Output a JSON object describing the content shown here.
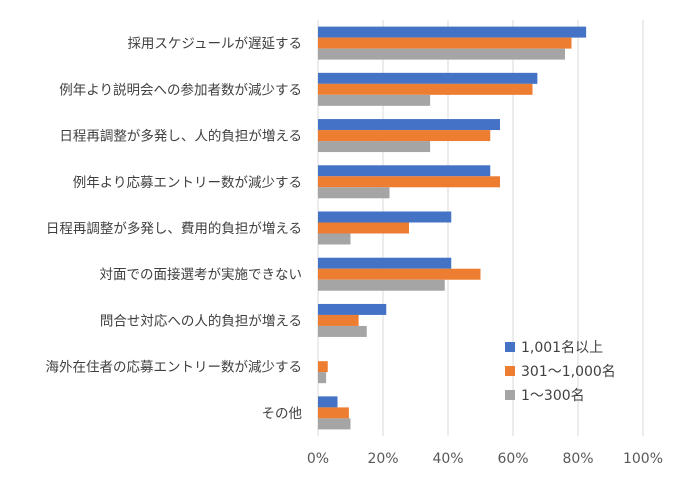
{
  "chart_data": {
    "type": "bar",
    "orientation": "horizontal",
    "categories": [
      "採用スケジュールが遅延する",
      "例年より説明会への参加者数が減少する",
      "日程再調整が多発し、人的負担が増える",
      "例年より応募エントリー数が減少する",
      "日程再調整が多発し、費用的負担が増える",
      "対面での面接選考が実施できない",
      "問合せ対応への人的負担が増える",
      "海外在住者の応募エントリー数が減少する",
      "その他"
    ],
    "series": [
      {
        "name": "1,001名以上",
        "color": "#4472C4",
        "values": [
          82.5,
          67.5,
          56,
          53,
          41,
          41,
          21,
          0,
          6
        ]
      },
      {
        "name": "301～1,000名",
        "color": "#ED7D31",
        "values": [
          78,
          66,
          53,
          56,
          28,
          50,
          12.5,
          3,
          9.5
        ]
      },
      {
        "name": "1～300名",
        "color": "#A5A5A5",
        "values": [
          76,
          34.5,
          34.5,
          22,
          10,
          39,
          15,
          2.5,
          10
        ]
      }
    ],
    "xlim": [
      0,
      100
    ],
    "xticks": [
      "0%",
      "20%",
      "40%",
      "60%",
      "80%",
      "100%"
    ],
    "xtick_values": [
      0,
      20,
      40,
      60,
      80,
      100
    ],
    "grid": true,
    "legend_position": "bottom-right"
  }
}
